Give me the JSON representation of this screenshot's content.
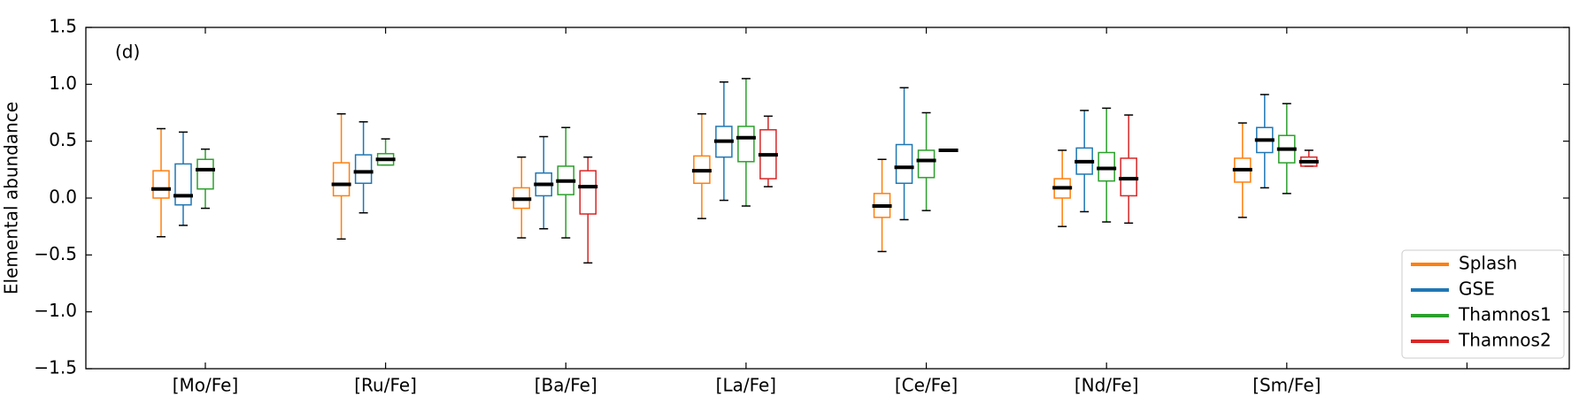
{
  "chart_data": {
    "type": "box",
    "annotation": "(d)",
    "y_label": "Elemental abundance",
    "categories": [
      "[Mo/Fe]",
      "[Ru/Fe]",
      "[Ba/Fe]",
      "[La/Fe]",
      "[Ce/Fe]",
      "[Nd/Fe]",
      "[Sm/Fe]",
      null
    ],
    "ylim": [
      -1.5,
      1.5
    ],
    "yticks": [
      {
        "value": -1.5,
        "label": "−1.5"
      },
      {
        "value": -1.0,
        "label": "−1.0"
      },
      {
        "value": -0.5,
        "label": "−0.5"
      },
      {
        "value": 0.0,
        "label": "0.0"
      },
      0.5,
      {
        "value": 1.0,
        "label": "1.0"
      },
      1.5
    ],
    "legend_position": "lower right",
    "median_color": "#000000",
    "series": [
      {
        "name": "Splash",
        "color": "#ff7f0e",
        "min": [
          -0.34,
          -0.36,
          -0.35,
          -0.18,
          -0.47,
          -0.25,
          -0.17,
          null
        ],
        "q1": [
          0.0,
          0.02,
          -0.09,
          0.13,
          -0.17,
          0.0,
          0.14,
          null
        ],
        "median": [
          0.08,
          0.12,
          -0.01,
          0.24,
          -0.07,
          0.09,
          0.25,
          null
        ],
        "q3": [
          0.24,
          0.31,
          0.09,
          0.37,
          0.04,
          0.17,
          0.35,
          null
        ],
        "max": [
          0.61,
          0.74,
          0.36,
          0.74,
          0.34,
          0.42,
          0.66,
          null
        ]
      },
      {
        "name": "GSE",
        "color": "#1f77b4",
        "min": [
          -0.24,
          -0.13,
          -0.27,
          -0.02,
          -0.19,
          -0.12,
          0.09,
          null
        ],
        "q1": [
          -0.06,
          0.13,
          0.02,
          0.36,
          0.13,
          0.21,
          0.4,
          null
        ],
        "median": [
          0.02,
          0.23,
          0.12,
          0.5,
          0.27,
          0.32,
          0.51,
          null
        ],
        "q3": [
          0.3,
          0.38,
          0.22,
          0.63,
          0.47,
          0.44,
          0.62,
          null
        ],
        "max": [
          0.58,
          0.67,
          0.54,
          1.02,
          0.97,
          0.77,
          0.91,
          null
        ]
      },
      {
        "name": "Thamnos1",
        "color": "#2ca02c",
        "min": [
          -0.09,
          0.29,
          -0.35,
          -0.07,
          -0.11,
          -0.21,
          0.04,
          null
        ],
        "q1": [
          0.08,
          0.29,
          0.03,
          0.32,
          0.18,
          0.15,
          0.31,
          null
        ],
        "median": [
          0.25,
          0.34,
          0.15,
          0.53,
          0.33,
          0.26,
          0.43,
          null
        ],
        "q3": [
          0.34,
          0.39,
          0.28,
          0.63,
          0.42,
          0.4,
          0.55,
          null
        ],
        "max": [
          0.43,
          0.52,
          0.62,
          1.05,
          0.75,
          0.79,
          0.83,
          null
        ]
      },
      {
        "name": "Thamnos2",
        "color": "#d62728",
        "min": [
          null,
          null,
          -0.57,
          0.1,
          0.42,
          -0.22,
          0.28,
          null
        ],
        "q1": [
          null,
          null,
          -0.14,
          0.17,
          0.42,
          0.02,
          0.28,
          null
        ],
        "median": [
          null,
          null,
          0.1,
          0.38,
          0.42,
          0.17,
          0.32,
          null
        ],
        "q3": [
          null,
          null,
          0.24,
          0.6,
          0.42,
          0.35,
          0.36,
          null
        ],
        "max": [
          null,
          null,
          0.36,
          0.72,
          0.42,
          0.73,
          0.42,
          null
        ]
      }
    ]
  }
}
